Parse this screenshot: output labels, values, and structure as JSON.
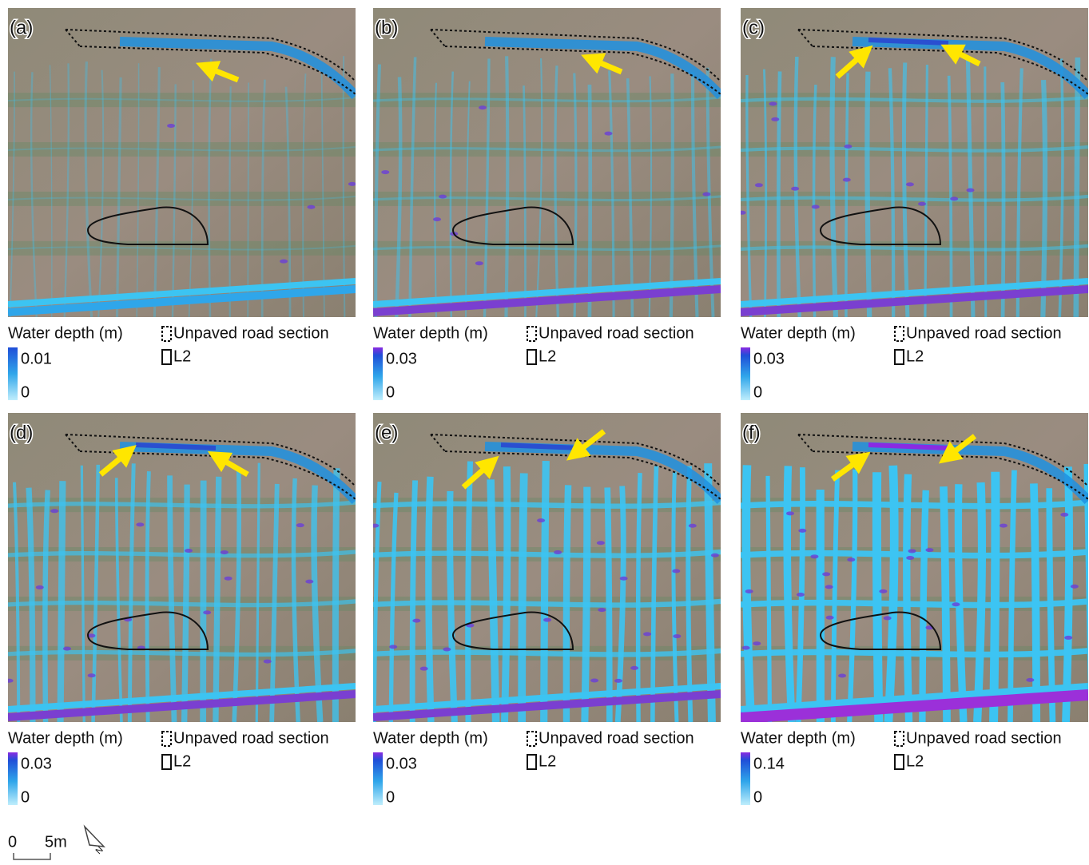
{
  "panels": [
    {
      "label": "(a)",
      "legend_title": "Water depth (m)",
      "legend_max": 0.01,
      "legend_min": 0,
      "road_label": "Unpaved road section",
      "l2_label": "L2"
    },
    {
      "label": "(b)",
      "legend_title": "Water depth (m)",
      "legend_max": 0.03,
      "legend_min": 0,
      "road_label": "Unpaved road section",
      "l2_label": "L2"
    },
    {
      "label": "(c)",
      "legend_title": "Water depth (m)",
      "legend_max": 0.03,
      "legend_min": 0,
      "road_label": "Unpaved road section",
      "l2_label": "L2"
    },
    {
      "label": "(d)",
      "legend_title": "Water depth (m)",
      "legend_max": 0.03,
      "legend_min": 0,
      "road_label": "Unpaved road section",
      "l2_label": "L2"
    },
    {
      "label": "(e)",
      "legend_title": "Water depth (m)",
      "legend_max": 0.03,
      "legend_min": 0,
      "road_label": "Unpaved road section",
      "l2_label": "L2"
    },
    {
      "label": "(f)",
      "legend_title": "Water depth (m)",
      "legend_max": 0.14,
      "legend_min": 0,
      "road_label": "Unpaved road section",
      "l2_label": "L2"
    }
  ],
  "scale_bar": {
    "zero": "0",
    "length": "5m"
  },
  "north": "N"
}
